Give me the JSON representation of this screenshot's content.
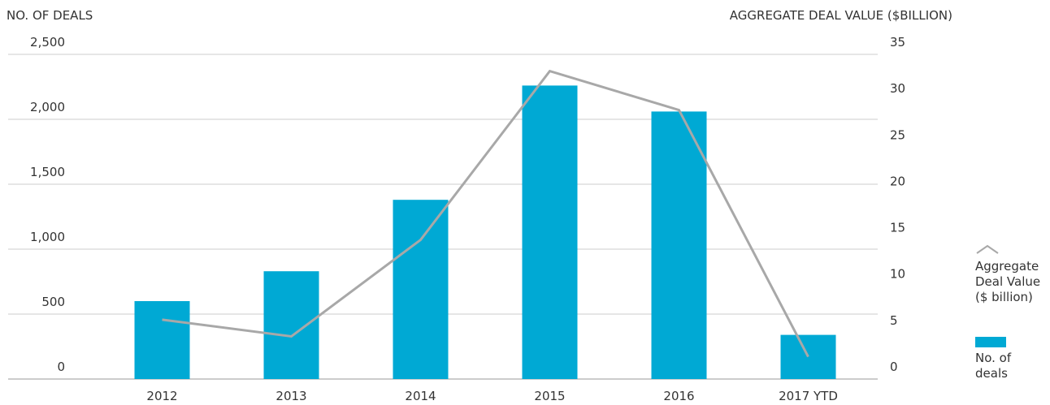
{
  "chart_data": {
    "type": "bar_line",
    "y_label": "NO. OF DEALS",
    "y2_label": "AGGREGATE DEAL VALUE ($BILLION)",
    "categories": [
      "2012",
      "2013",
      "2014",
      "2015",
      "2016",
      "2017 YTD"
    ],
    "series": [
      {
        "name": "No. of deals",
        "color": "#00a9d4",
        "type": "bar",
        "values": [
          600,
          830,
          1380,
          2260,
          2060,
          340
        ]
      },
      {
        "name": "Aggregate Deal Value ($ billion)",
        "color": "#a8a8a8",
        "type": "line",
        "axis": "y2",
        "values": [
          6.4,
          4.6,
          15.0,
          33.2,
          29.0,
          2.4
        ]
      }
    ],
    "ylim": [
      0,
      2500
    ],
    "yticks": [
      0,
      500,
      {
        "value": 1000,
        "label": "1,000"
      },
      {
        "value": 1500,
        "label": "1,500"
      },
      {
        "value": 2000,
        "label": "2,000"
      },
      {
        "value": 2500,
        "label": "2,500"
      }
    ],
    "y2lim": [
      0,
      35
    ],
    "y2ticks": [
      0,
      5,
      10,
      15,
      20,
      25,
      30,
      35
    ],
    "grid": true
  }
}
